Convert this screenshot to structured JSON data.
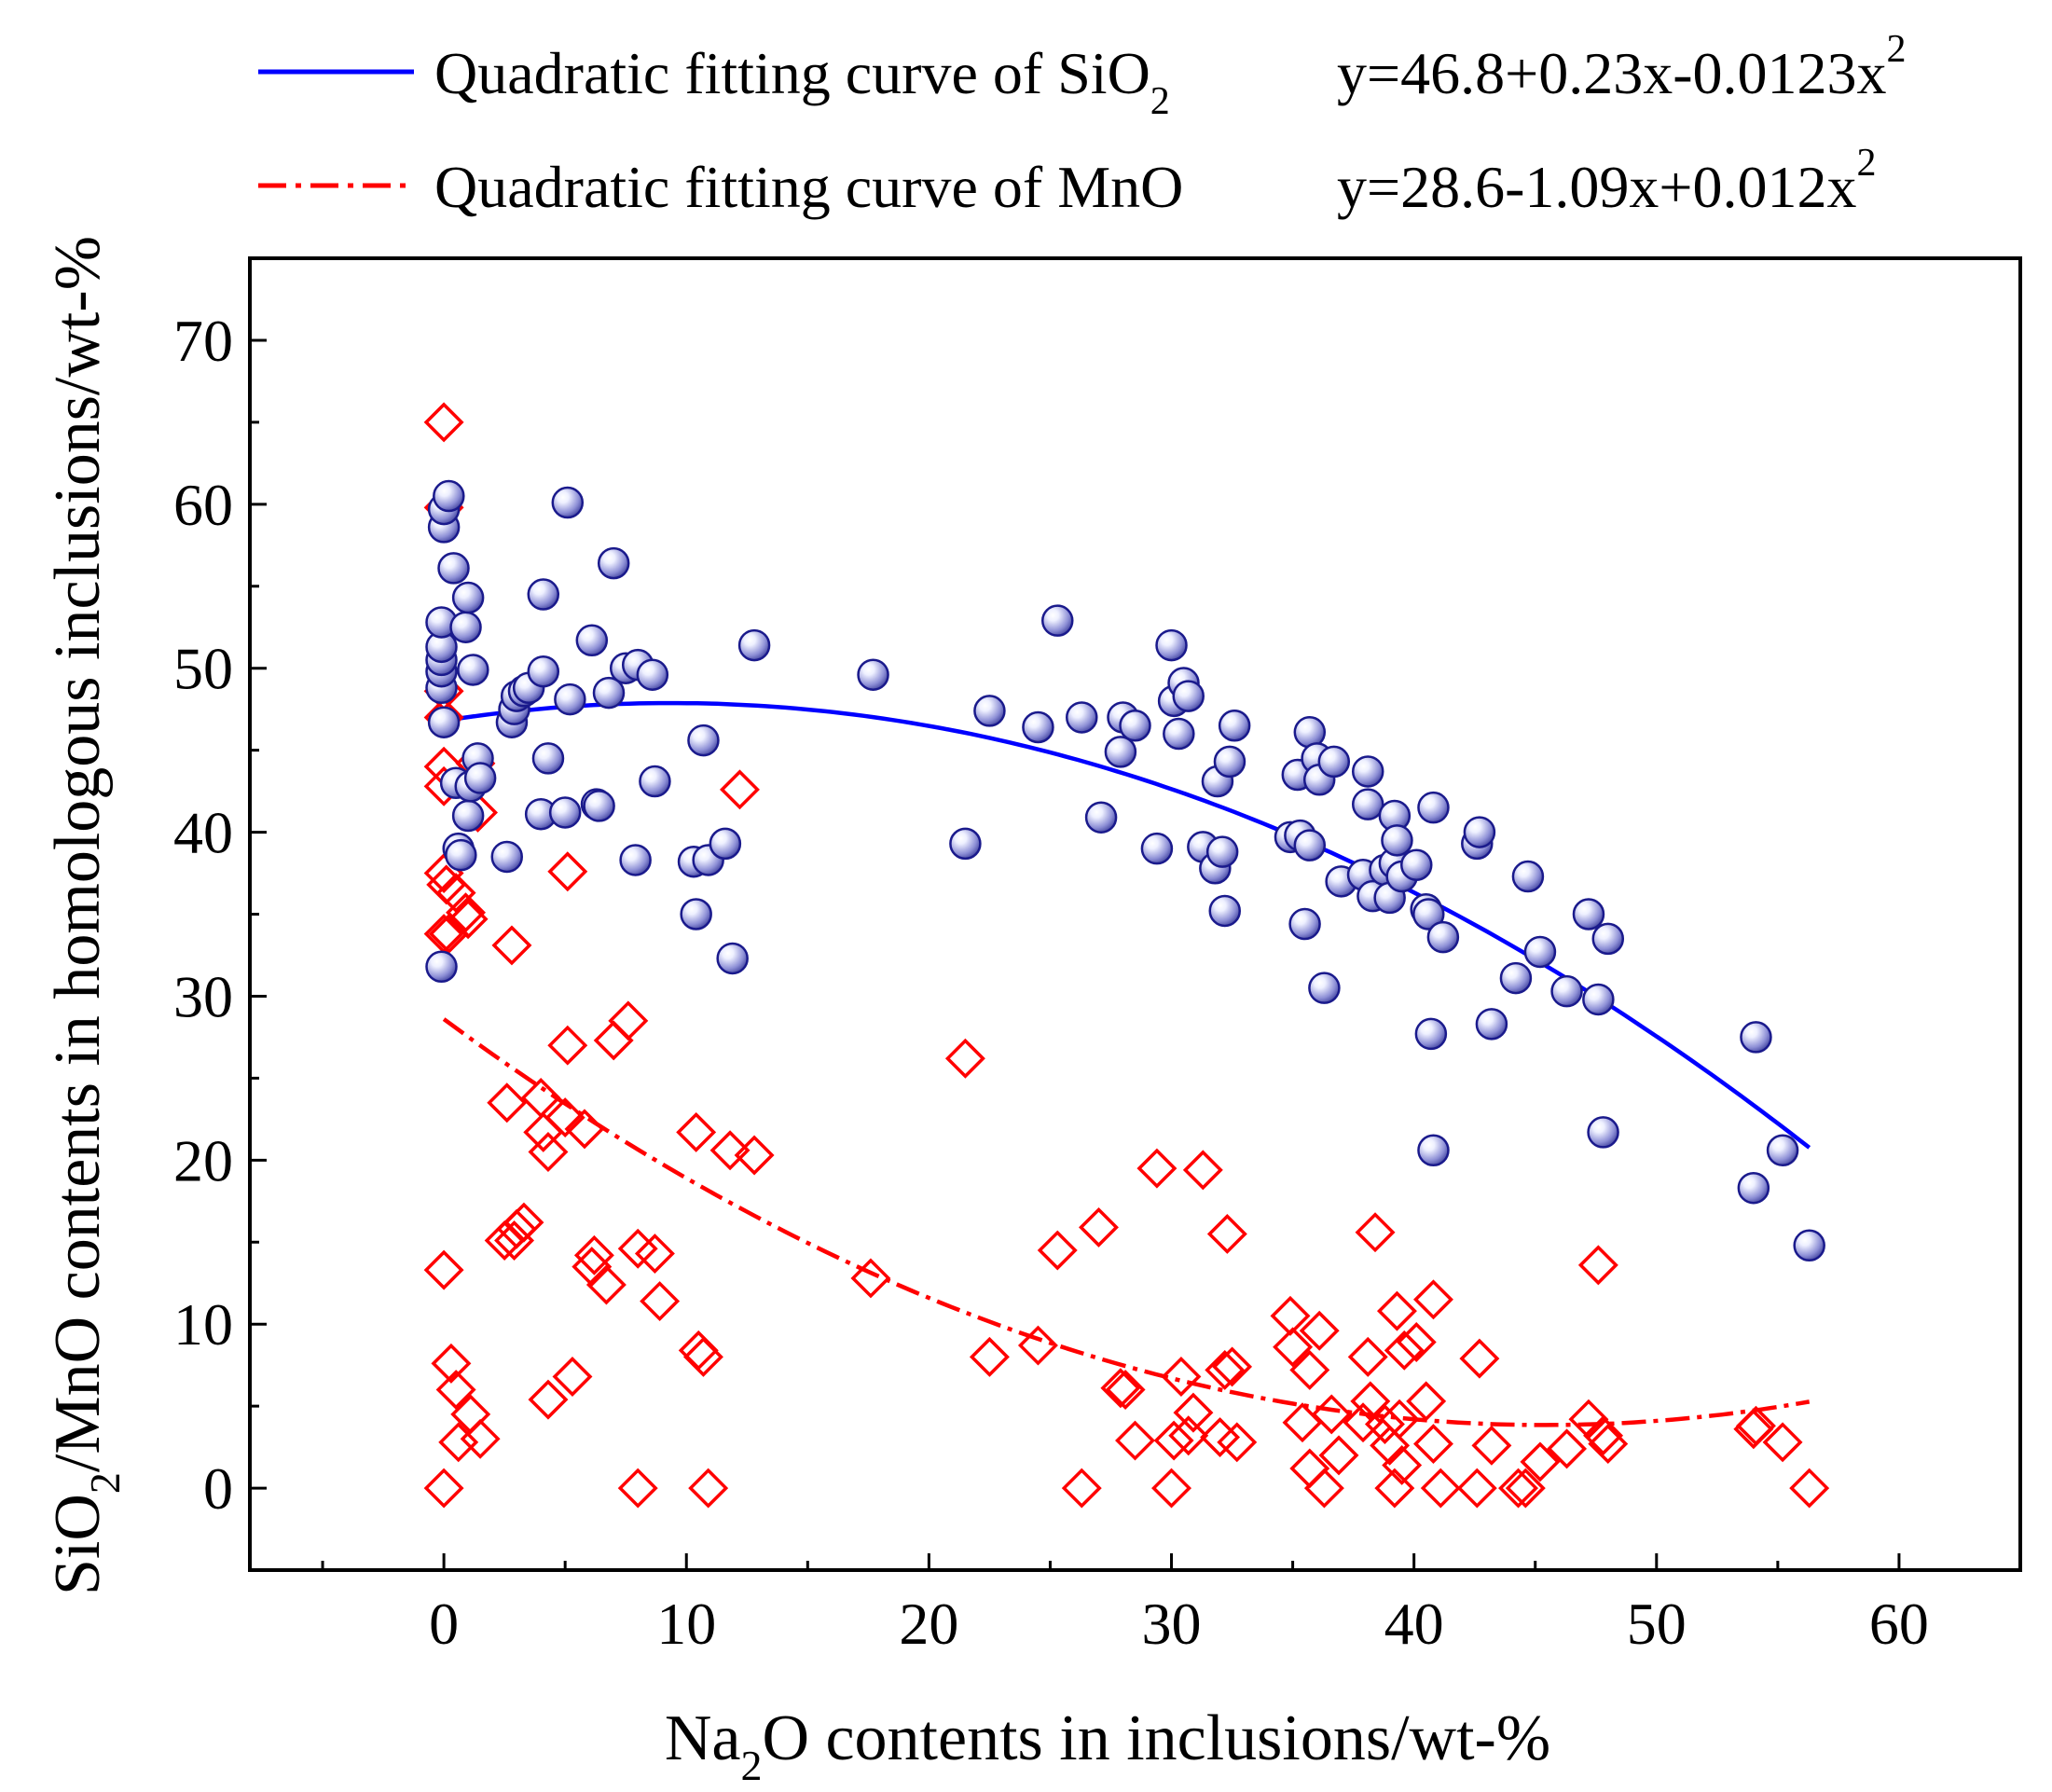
{
  "chart_data": {
    "type": "scatter",
    "title": "",
    "xlabel_parts": [
      "Na",
      "2",
      "O contents in inclusions/wt-%"
    ],
    "ylabel_parts": [
      "SiO",
      "2",
      "/MnO contents in homologous inclusions/wt-%"
    ],
    "xlim": [
      -8,
      65
    ],
    "ylim": [
      -5,
      75
    ],
    "x_ticks": [
      0,
      10,
      20,
      30,
      40,
      50,
      60
    ],
    "y_ticks": [
      0,
      10,
      20,
      30,
      40,
      50,
      60,
      70
    ],
    "x_tick_labels": [
      "0",
      "10",
      "20",
      "30",
      "40",
      "50",
      "60"
    ],
    "y_tick_labels": [
      "0",
      "10",
      "20",
      "30",
      "40",
      "50",
      "60",
      "70"
    ],
    "legend_position": "top",
    "legend": [
      {
        "series": "SiO2",
        "label_parts": [
          "Quadratic fitting curve of SiO",
          "2"
        ],
        "equation_parts": [
          "y=46.8+0.23x-0.0123x",
          "2"
        ],
        "line_style": "solid",
        "color": "#0000ff"
      },
      {
        "series": "MnO",
        "label_parts": [
          "Quadratic fitting curve of MnO",
          ""
        ],
        "equation_parts": [
          "y=28.6-1.09x+0.012x",
          "2"
        ],
        "line_style": "dash-dot",
        "color": "#ff0000"
      }
    ],
    "fits": [
      {
        "name": "SiO2",
        "a": 46.8,
        "b": 0.23,
        "c": -0.0123,
        "x_range": [
          0,
          56.3
        ],
        "color": "#0000ff"
      },
      {
        "name": "MnO",
        "a": 28.6,
        "b": -1.09,
        "c": 0.012,
        "x_range": [
          0,
          56.3
        ],
        "color": "#ff0000"
      }
    ],
    "series": [
      {
        "name": "SiO2",
        "marker": "shaded-circle",
        "edge_color": "#1a1a8c",
        "points": [
          [
            -0.1,
            31.8
          ],
          [
            0,
            46.7
          ],
          [
            -0.1,
            48.8
          ],
          [
            -0.1,
            49.8
          ],
          [
            -0.1,
            50.5
          ],
          [
            -0.1,
            51.3
          ],
          [
            -0.1,
            52.8
          ],
          [
            0,
            58.6
          ],
          [
            0,
            59.7
          ],
          [
            0.2,
            60.5
          ],
          [
            0.4,
            56.1
          ],
          [
            0.5,
            43.0
          ],
          [
            0.6,
            39.0
          ],
          [
            0.7,
            38.6
          ],
          [
            0.9,
            52.5
          ],
          [
            1.0,
            54.3
          ],
          [
            1.0,
            41.0
          ],
          [
            1.1,
            42.8
          ],
          [
            1.2,
            49.9
          ],
          [
            1.4,
            44.5
          ],
          [
            1.5,
            43.3
          ],
          [
            2.6,
            38.5
          ],
          [
            2.8,
            46.7
          ],
          [
            2.9,
            47.5
          ],
          [
            3.0,
            48.3
          ],
          [
            3.3,
            48.6
          ],
          [
            3.5,
            48.8
          ],
          [
            4.0,
            41.1
          ],
          [
            4.1,
            54.5
          ],
          [
            4.1,
            49.8
          ],
          [
            4.3,
            44.5
          ],
          [
            5.0,
            41.2
          ],
          [
            5.1,
            60.1
          ],
          [
            5.2,
            48.1
          ],
          [
            6.1,
            51.7
          ],
          [
            6.3,
            41.7
          ],
          [
            6.4,
            41.6
          ],
          [
            6.8,
            48.5
          ],
          [
            7.0,
            56.4
          ],
          [
            7.5,
            50.0
          ],
          [
            7.9,
            38.3
          ],
          [
            8.0,
            50.2
          ],
          [
            8.6,
            49.6
          ],
          [
            8.7,
            43.1
          ],
          [
            10.3,
            38.2
          ],
          [
            10.4,
            35.0
          ],
          [
            10.7,
            45.6
          ],
          [
            10.9,
            38.3
          ],
          [
            11.6,
            39.3
          ],
          [
            11.9,
            32.3
          ],
          [
            12.8,
            51.4
          ],
          [
            17.7,
            49.6
          ],
          [
            21.5,
            39.3
          ],
          [
            22.5,
            47.4
          ],
          [
            24.5,
            46.4
          ],
          [
            25.3,
            52.9
          ],
          [
            26.3,
            47.0
          ],
          [
            27.1,
            40.9
          ],
          [
            27.9,
            44.9
          ],
          [
            28.0,
            47.0
          ],
          [
            28.5,
            46.5
          ],
          [
            29.4,
            39.0
          ],
          [
            30.0,
            51.4
          ],
          [
            30.1,
            48.0
          ],
          [
            30.3,
            46.0
          ],
          [
            30.5,
            49.1
          ],
          [
            30.7,
            48.3
          ],
          [
            31.3,
            39.1
          ],
          [
            31.8,
            37.8
          ],
          [
            31.9,
            43.1
          ],
          [
            32.1,
            38.8
          ],
          [
            32.2,
            35.2
          ],
          [
            32.4,
            44.3
          ],
          [
            32.6,
            46.5
          ],
          [
            34.9,
            39.7
          ],
          [
            35.2,
            43.5
          ],
          [
            35.3,
            39.8
          ],
          [
            35.5,
            34.4
          ],
          [
            35.7,
            39.2
          ],
          [
            35.7,
            46.1
          ],
          [
            36.0,
            44.5
          ],
          [
            36.1,
            43.2
          ],
          [
            36.3,
            30.5
          ],
          [
            36.7,
            44.3
          ],
          [
            37.0,
            37.0
          ],
          [
            37.9,
            37.4
          ],
          [
            38.1,
            43.7
          ],
          [
            38.1,
            41.7
          ],
          [
            38.3,
            36.1
          ],
          [
            38.8,
            37.7
          ],
          [
            39.0,
            36.0
          ],
          [
            39.2,
            38.1
          ],
          [
            39.2,
            41.0
          ],
          [
            39.3,
            39.5
          ],
          [
            39.5,
            37.3
          ],
          [
            40.1,
            38.0
          ],
          [
            40.5,
            35.3
          ],
          [
            40.6,
            35.0
          ],
          [
            40.7,
            27.7
          ],
          [
            40.8,
            20.6
          ],
          [
            40.8,
            41.5
          ],
          [
            41.2,
            33.6
          ],
          [
            42.6,
            39.3
          ],
          [
            42.7,
            40.0
          ],
          [
            43.2,
            28.3
          ],
          [
            44.2,
            31.1
          ],
          [
            44.7,
            37.3
          ],
          [
            45.2,
            32.7
          ],
          [
            46.3,
            30.3
          ],
          [
            47.2,
            35.0
          ],
          [
            47.6,
            29.8
          ],
          [
            47.8,
            21.7
          ],
          [
            48.0,
            33.5
          ],
          [
            54.0,
            18.3
          ],
          [
            54.1,
            27.5
          ],
          [
            55.2,
            20.6
          ],
          [
            56.3,
            14.8
          ]
        ]
      },
      {
        "name": "MnO",
        "marker": "open-diamond",
        "edge_color": "#ff0000",
        "points": [
          [
            0,
            65.0
          ],
          [
            0,
            59.8
          ],
          [
            0,
            48.6
          ],
          [
            0,
            47.0
          ],
          [
            0,
            44.0
          ],
          [
            0,
            42.8
          ],
          [
            0,
            37.5
          ],
          [
            0,
            33.8
          ],
          [
            0.1,
            36.8
          ],
          [
            0.2,
            33.8
          ],
          [
            0,
            13.3
          ],
          [
            0,
            0
          ],
          [
            0.3,
            7.6
          ],
          [
            0.5,
            36.3
          ],
          [
            0.5,
            6.0
          ],
          [
            0.6,
            2.8
          ],
          [
            0.9,
            35.1
          ],
          [
            1.0,
            34.7
          ],
          [
            1.1,
            4.5
          ],
          [
            1.3,
            44.2
          ],
          [
            1.4,
            41.2
          ],
          [
            1.5,
            3.0
          ],
          [
            2.5,
            15.1
          ],
          [
            2.6,
            23.5
          ],
          [
            2.8,
            33.1
          ],
          [
            2.9,
            15.1
          ],
          [
            3.0,
            15.8
          ],
          [
            3.3,
            16.2
          ],
          [
            4.0,
            23.8
          ],
          [
            4.1,
            21.7
          ],
          [
            4.3,
            20.5
          ],
          [
            4.3,
            5.4
          ],
          [
            5.0,
            22.6
          ],
          [
            5.1,
            37.6
          ],
          [
            5.1,
            27.0
          ],
          [
            5.3,
            6.8
          ],
          [
            5.8,
            21.9
          ],
          [
            6.1,
            13.5
          ],
          [
            6.2,
            14.2
          ],
          [
            6.7,
            12.4
          ],
          [
            7.0,
            27.3
          ],
          [
            7.6,
            28.5
          ],
          [
            8.0,
            0
          ],
          [
            8.0,
            14.6
          ],
          [
            8.7,
            14.3
          ],
          [
            8.9,
            11.4
          ],
          [
            10.4,
            21.7
          ],
          [
            10.5,
            8.4
          ],
          [
            10.7,
            8.0
          ],
          [
            10.9,
            0
          ],
          [
            11.8,
            20.6
          ],
          [
            12.2,
            42.6
          ],
          [
            12.8,
            20.3
          ],
          [
            17.6,
            12.8
          ],
          [
            21.5,
            26.2
          ],
          [
            22.5,
            8.0
          ],
          [
            24.5,
            8.7
          ],
          [
            25.3,
            14.5
          ],
          [
            26.3,
            0
          ],
          [
            27.0,
            15.9
          ],
          [
            27.9,
            6.1
          ],
          [
            28.1,
            6.0
          ],
          [
            28.5,
            2.9
          ],
          [
            29.4,
            19.5
          ],
          [
            30.0,
            0
          ],
          [
            30.1,
            2.9
          ],
          [
            30.4,
            6.8
          ],
          [
            30.7,
            3.2
          ],
          [
            30.9,
            4.6
          ],
          [
            31.3,
            19.4
          ],
          [
            32.0,
            3.1
          ],
          [
            32.2,
            7.2
          ],
          [
            32.3,
            15.5
          ],
          [
            32.5,
            7.4
          ],
          [
            32.7,
            2.8
          ],
          [
            34.9,
            10.5
          ],
          [
            35.0,
            8.6
          ],
          [
            35.4,
            4.0
          ],
          [
            35.7,
            7.2
          ],
          [
            35.7,
            1.2
          ],
          [
            36.1,
            9.6
          ],
          [
            36.3,
            0
          ],
          [
            36.6,
            4.5
          ],
          [
            36.9,
            2.0
          ],
          [
            37.9,
            4.0
          ],
          [
            38.1,
            8.0
          ],
          [
            38.2,
            5.3
          ],
          [
            38.4,
            15.6
          ],
          [
            38.8,
            3.9
          ],
          [
            39.0,
            2.6
          ],
          [
            39.2,
            0
          ],
          [
            39.3,
            10.8
          ],
          [
            39.4,
            4.2
          ],
          [
            39.5,
            1.4
          ],
          [
            39.6,
            8.4
          ],
          [
            40.1,
            8.9
          ],
          [
            40.5,
            5.3
          ],
          [
            40.8,
            2.7
          ],
          [
            40.8,
            11.5
          ],
          [
            41.1,
            0
          ],
          [
            42.6,
            0
          ],
          [
            42.7,
            7.9
          ],
          [
            43.2,
            2.6
          ],
          [
            44.3,
            0
          ],
          [
            44.6,
            0
          ],
          [
            45.2,
            1.6
          ],
          [
            46.3,
            2.4
          ],
          [
            47.2,
            4.2
          ],
          [
            47.6,
            13.6
          ],
          [
            47.8,
            3.2
          ],
          [
            48.0,
            2.7
          ],
          [
            54.0,
            3.6
          ],
          [
            54.1,
            3.8
          ],
          [
            55.2,
            2.8
          ],
          [
            56.3,
            0
          ]
        ]
      }
    ]
  }
}
